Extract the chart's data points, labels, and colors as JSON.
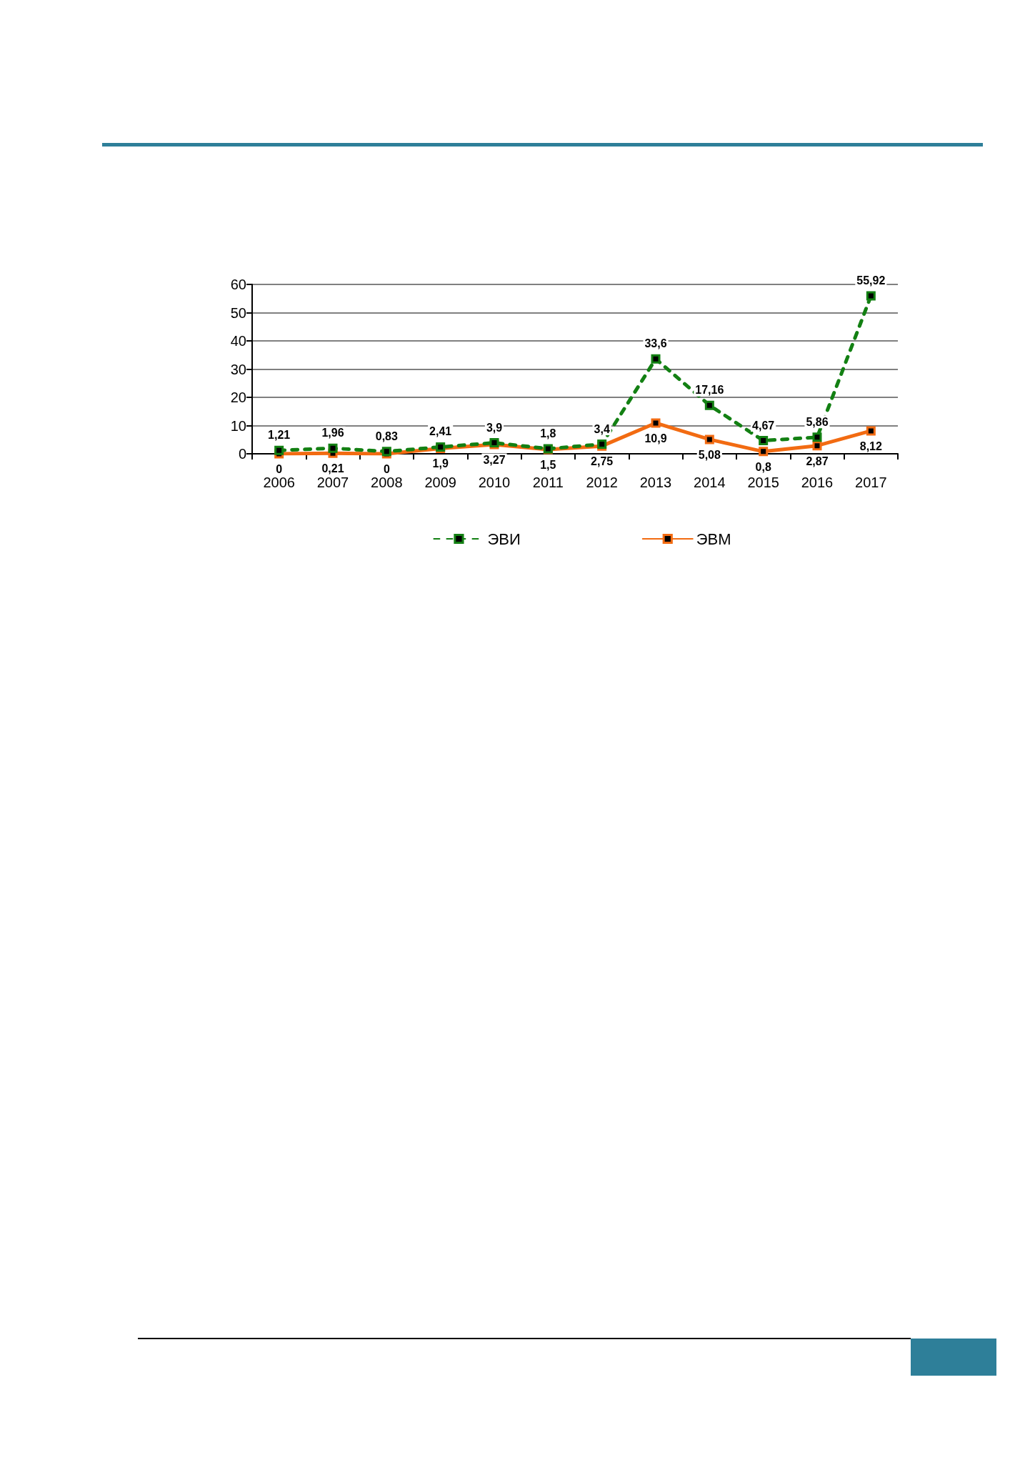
{
  "chart_data": {
    "type": "line",
    "categories": [
      "2006",
      "2007",
      "2008",
      "2009",
      "2010",
      "2011",
      "2012",
      "2013",
      "2014",
      "2015",
      "2016",
      "2017"
    ],
    "series": [
      {
        "name": "ЭВИ",
        "color": "#138013",
        "line_style": "dashed",
        "values": [
          1.21,
          1.96,
          0.83,
          2.41,
          3.9,
          1.8,
          3.4,
          33.6,
          17.16,
          4.67,
          5.86,
          55.92
        ],
        "value_labels": [
          "1,21",
          "1,96",
          "0,83",
          "2,41",
          "3,9",
          "1,8",
          "3,4",
          "33,6",
          "17,16",
          "4,67",
          "5,86",
          "55,92"
        ]
      },
      {
        "name": "ЭВМ",
        "color": "#f26b12",
        "line_style": "solid",
        "values": [
          0,
          0.21,
          0,
          1.9,
          3.27,
          1.5,
          2.75,
          10.9,
          5.08,
          0.8,
          2.87,
          8.12
        ],
        "value_labels": [
          "0",
          "0,21",
          "0",
          "1,9",
          "3,27",
          "1,5",
          "2,75",
          "10,9",
          "5,08",
          "0,8",
          "2,87",
          "8,12"
        ]
      }
    ],
    "ylim": [
      0,
      60
    ],
    "yticks": [
      0,
      10,
      20,
      30,
      40,
      50,
      60
    ],
    "grid": "y",
    "legend": "bottom",
    "marker": "square"
  }
}
